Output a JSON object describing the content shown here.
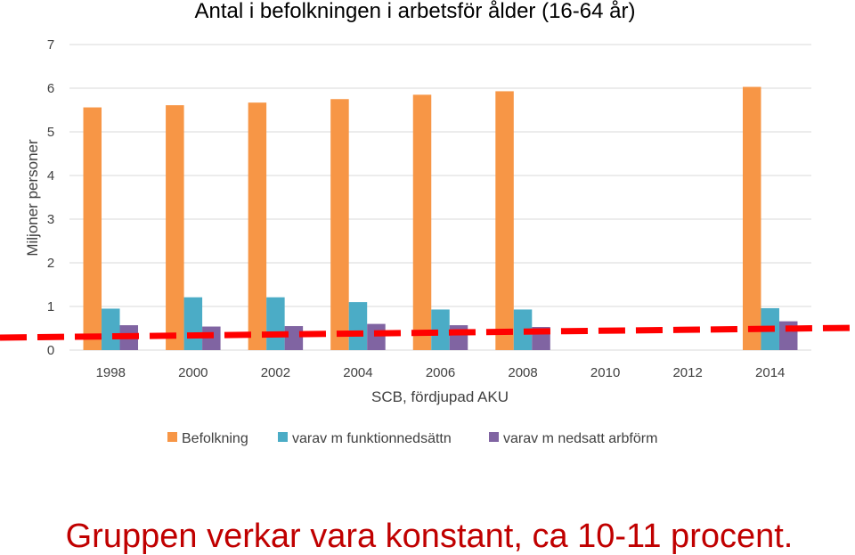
{
  "chart_data": {
    "type": "bar",
    "title": "Antal i befolkningen i arbetsför ålder (16-64 år)",
    "xlabel": "SCB, fördjupad AKU",
    "ylabel": "Miljoner personer",
    "ylim": [
      0,
      7
    ],
    "yticks": [
      "0",
      "1",
      "2",
      "3",
      "4",
      "5",
      "6",
      "7"
    ],
    "categories": [
      "1998",
      "2000",
      "2002",
      "2004",
      "2006",
      "2008",
      "2010",
      "2012",
      "2014"
    ],
    "series": [
      {
        "name": "Befolkning",
        "color": "#F79646",
        "values": [
          5.56,
          5.61,
          5.67,
          5.75,
          5.85,
          5.93,
          null,
          null,
          6.03
        ]
      },
      {
        "name": "varav m funktionnedsättn",
        "color": "#4BACC6",
        "values": [
          0.95,
          1.21,
          1.21,
          1.1,
          0.93,
          0.93,
          null,
          null,
          0.96
        ]
      },
      {
        "name": "varav m nedsatt arbförm",
        "color": "#8064A2",
        "values": [
          0.57,
          0.54,
          0.55,
          0.6,
          0.57,
          0.53,
          null,
          null,
          0.66
        ]
      }
    ],
    "grid": true,
    "legend": "bottom",
    "annotation": "Gruppen verkar vara konstant, ca 10-11 procent.",
    "trend_line_color": "#FF0000"
  }
}
